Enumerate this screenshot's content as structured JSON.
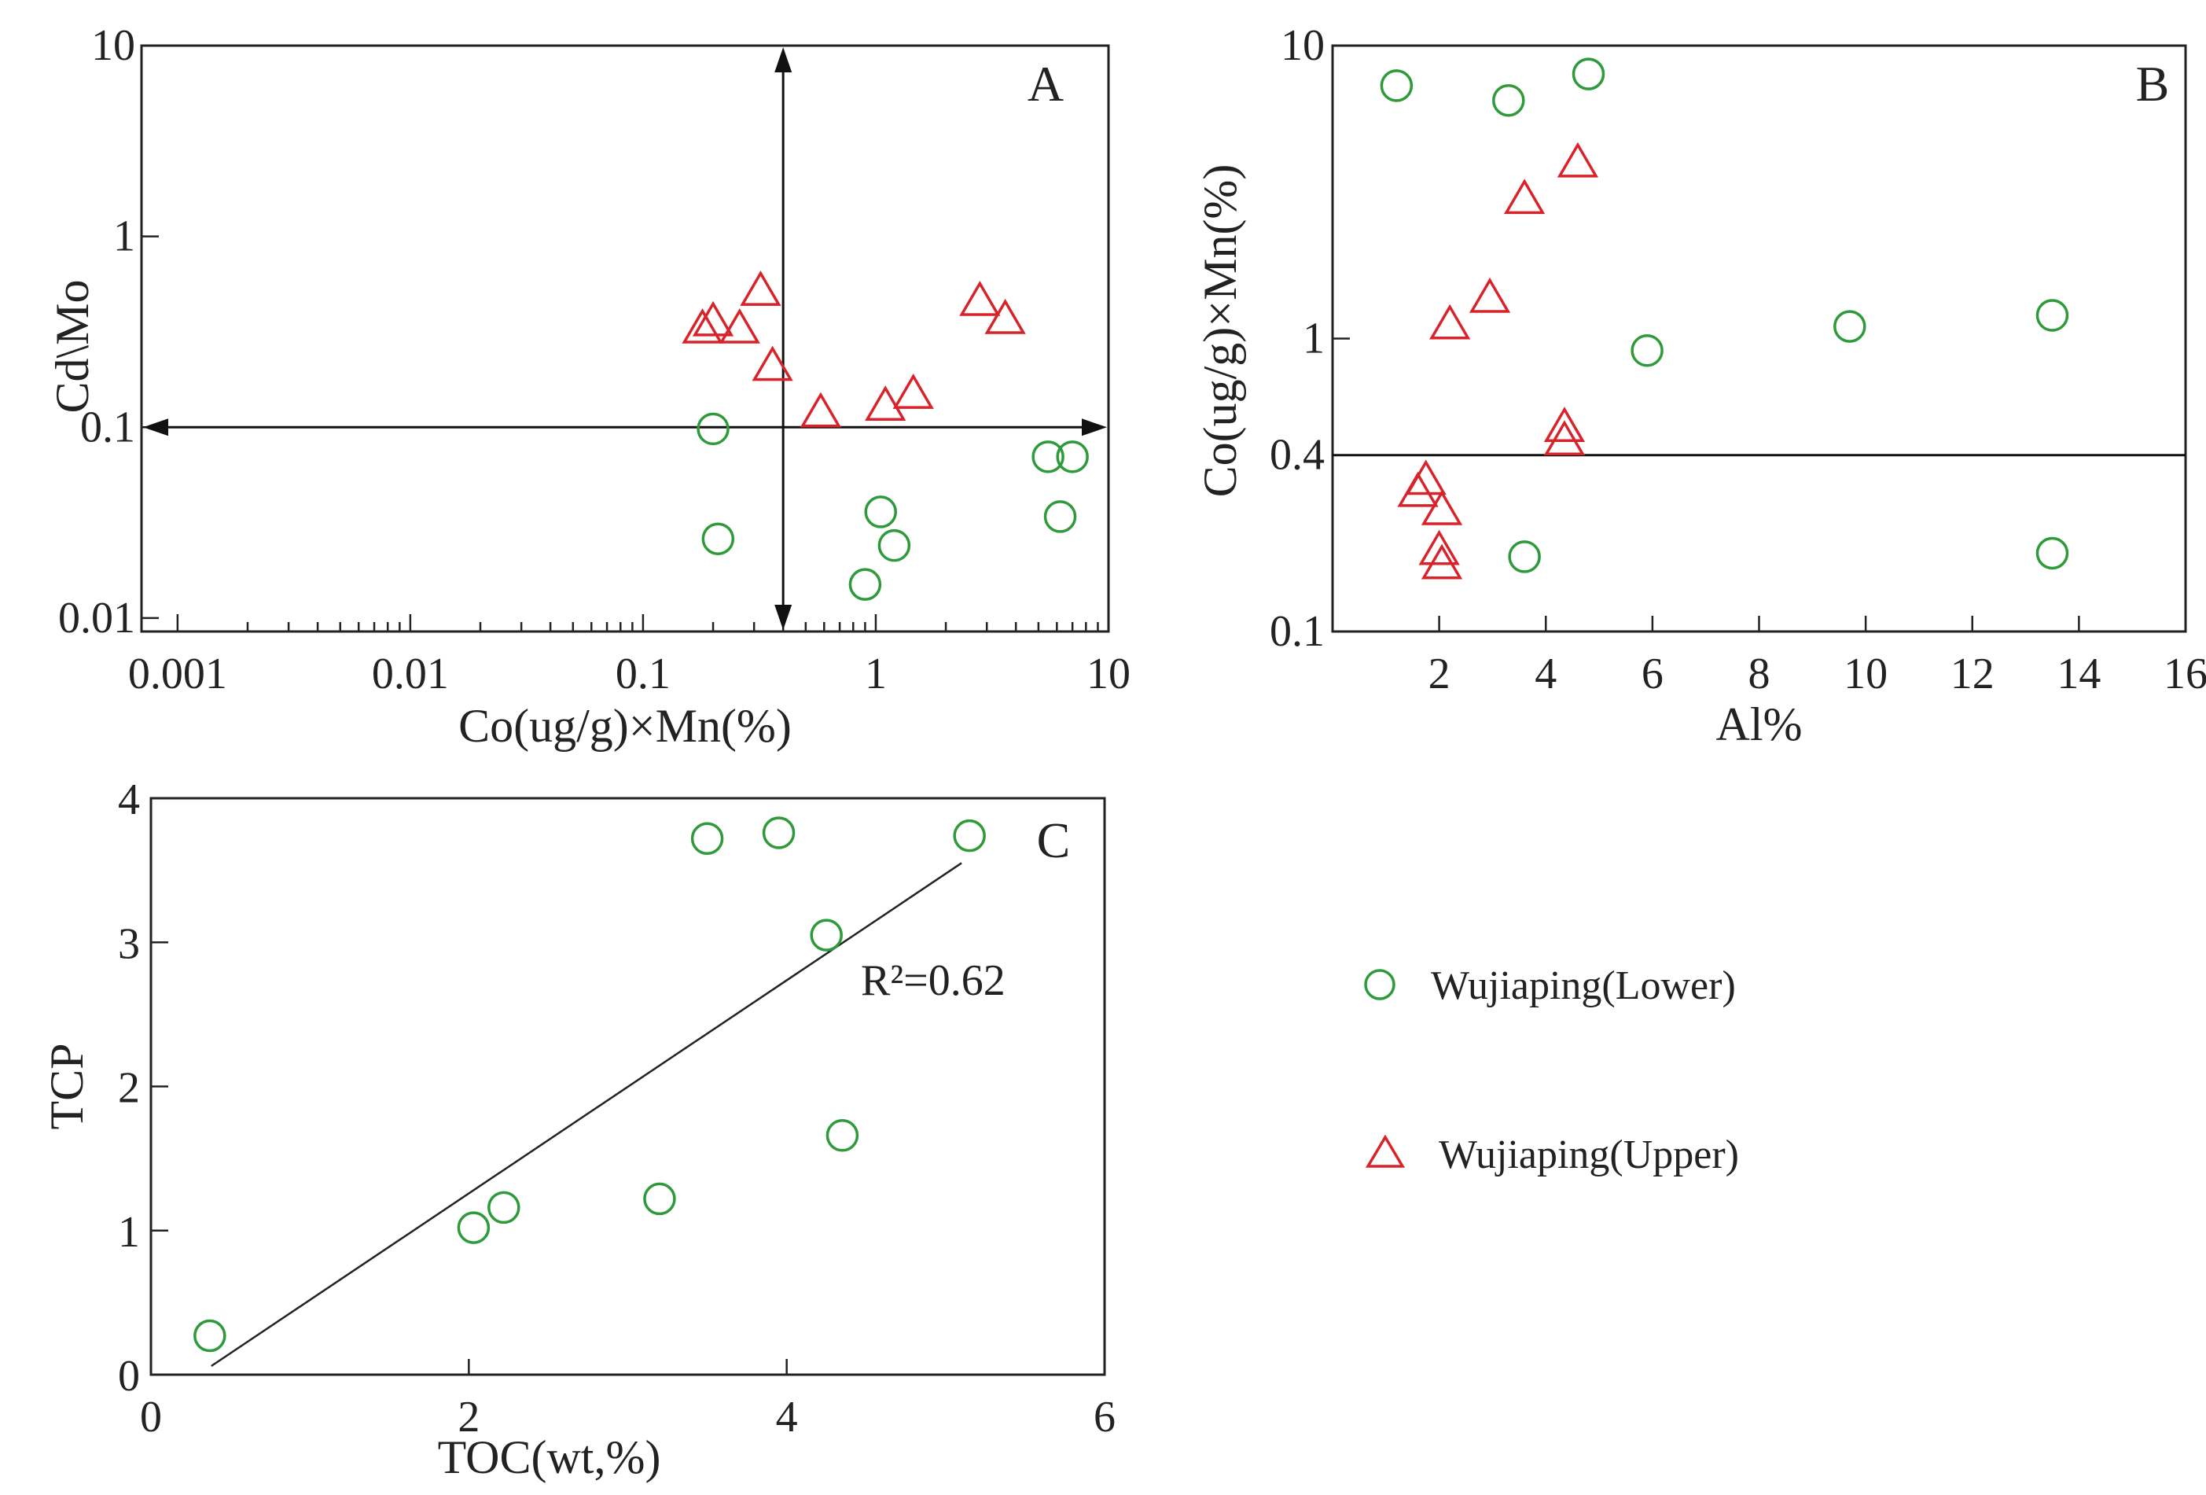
{
  "legend": {
    "lower": "Wujiaping(Lower)",
    "upper": "Wujiaping(Upper)"
  },
  "colors": {
    "lower": "#2e9a3a",
    "upper": "#d8232a",
    "axis": "#222222"
  },
  "chart_data": [
    {
      "panel": "A",
      "type": "scatter",
      "xscale": "log",
      "yscale": "log",
      "xlabel": "Co(ug/g)×Mn(%)",
      "ylabel": "Cd\\Mo",
      "xlim": [
        0.0007,
        10
      ],
      "ylim": [
        0.0085,
        10
      ],
      "xticks": [
        {
          "v": 0.001,
          "label": "0.001"
        },
        {
          "v": 0.01,
          "label": "0.01"
        },
        {
          "v": 0.1,
          "label": "0.1"
        },
        {
          "v": 1,
          "label": "1"
        },
        {
          "v": 10,
          "label": "10"
        }
      ],
      "yticks": [
        {
          "v": 0.01,
          "label": "0.01"
        },
        {
          "v": 0.1,
          "label": "0.1"
        },
        {
          "v": 1,
          "label": "1"
        },
        {
          "v": 10,
          "label": "10"
        }
      ],
      "reference_lines": {
        "horizontal_y": 0.1,
        "vertical_x": 0.4
      },
      "series": [
        {
          "name": "Wujiaping(Lower)",
          "marker": "circle",
          "points": [
            [
              0.2,
              0.098
            ],
            [
              0.21,
              0.026
            ],
            [
              0.9,
              0.015
            ],
            [
              1.05,
              0.036
            ],
            [
              1.2,
              0.024
            ],
            [
              5.5,
              0.07
            ],
            [
              6.2,
              0.034
            ],
            [
              7,
              0.07
            ]
          ]
        },
        {
          "name": "Wujiaping(Upper)",
          "marker": "triangle",
          "points": [
            [
              0.18,
              0.33
            ],
            [
              0.2,
              0.36
            ],
            [
              0.26,
              0.33
            ],
            [
              0.32,
              0.52
            ],
            [
              0.36,
              0.21
            ],
            [
              0.58,
              0.12
            ],
            [
              1.1,
              0.13
            ],
            [
              1.45,
              0.15
            ],
            [
              2.8,
              0.46
            ],
            [
              3.6,
              0.37
            ]
          ]
        }
      ]
    },
    {
      "panel": "B",
      "type": "scatter",
      "xscale": "linear",
      "yscale": "log",
      "xlabel": "Al%",
      "ylabel": "Co(ug/g)×Mn(%)",
      "xlim": [
        0,
        16
      ],
      "ylim": [
        0.1,
        10
      ],
      "xticks": [
        {
          "v": 2,
          "label": "2"
        },
        {
          "v": 4,
          "label": "4"
        },
        {
          "v": 6,
          "label": "6"
        },
        {
          "v": 8,
          "label": "8"
        },
        {
          "v": 10,
          "label": "10"
        },
        {
          "v": 12,
          "label": "12"
        },
        {
          "v": 14,
          "label": "14"
        },
        {
          "v": 16,
          "label": "16"
        }
      ],
      "yticks": [
        {
          "v": 0.1,
          "label": "0.1"
        },
        {
          "v": 0.4,
          "label": "0.4"
        },
        {
          "v": 1,
          "label": "1"
        },
        {
          "v": 10,
          "label": "10"
        }
      ],
      "reference_lines": {
        "horizontal_y": 0.4
      },
      "series": [
        {
          "name": "Wujiaping(Lower)",
          "marker": "circle",
          "points": [
            [
              1.2,
              7.3
            ],
            [
              3.3,
              6.5
            ],
            [
              4.8,
              8.0
            ],
            [
              5.9,
              0.91
            ],
            [
              9.7,
              1.1
            ],
            [
              13.5,
              1.2
            ],
            [
              3.6,
              0.18
            ],
            [
              13.5,
              0.185
            ]
          ]
        },
        {
          "name": "Wujiaping(Upper)",
          "marker": "triangle",
          "points": [
            [
              1.6,
              0.3
            ],
            [
              1.75,
              0.33
            ],
            [
              2.05,
              0.26
            ],
            [
              2.0,
              0.19
            ],
            [
              2.05,
              0.17
            ],
            [
              2.2,
              1.12
            ],
            [
              2.95,
              1.38
            ],
            [
              3.6,
              3.0
            ],
            [
              4.6,
              4.0
            ],
            [
              4.35,
              0.5
            ],
            [
              4.35,
              0.45
            ]
          ]
        }
      ]
    },
    {
      "panel": "C",
      "type": "scatter",
      "xscale": "linear",
      "yscale": "linear",
      "xlabel": "TOC(wt,%)",
      "ylabel": "TCP",
      "xlim": [
        0,
        6
      ],
      "ylim": [
        0,
        4
      ],
      "xticks": [
        {
          "v": 0,
          "label": "0"
        },
        {
          "v": 2,
          "label": "2"
        },
        {
          "v": 4,
          "label": "4"
        },
        {
          "v": 6,
          "label": "6"
        }
      ],
      "yticks": [
        {
          "v": 0,
          "label": "0"
        },
        {
          "v": 1,
          "label": "1"
        },
        {
          "v": 2,
          "label": "2"
        },
        {
          "v": 3,
          "label": "3"
        },
        {
          "v": 4,
          "label": "4"
        }
      ],
      "trendline": {
        "from": [
          0.38,
          0.06
        ],
        "to": [
          5.1,
          3.55
        ],
        "label": "R²=0.62"
      },
      "series": [
        {
          "name": "Wujiaping(Lower)",
          "marker": "circle",
          "points": [
            [
              0.37,
              0.27
            ],
            [
              2.03,
              1.02
            ],
            [
              2.22,
              1.16
            ],
            [
              3.2,
              1.22
            ],
            [
              3.5,
              3.72
            ],
            [
              3.95,
              3.76
            ],
            [
              4.25,
              3.05
            ],
            [
              4.35,
              1.66
            ],
            [
              5.15,
              3.74
            ]
          ]
        }
      ]
    }
  ]
}
